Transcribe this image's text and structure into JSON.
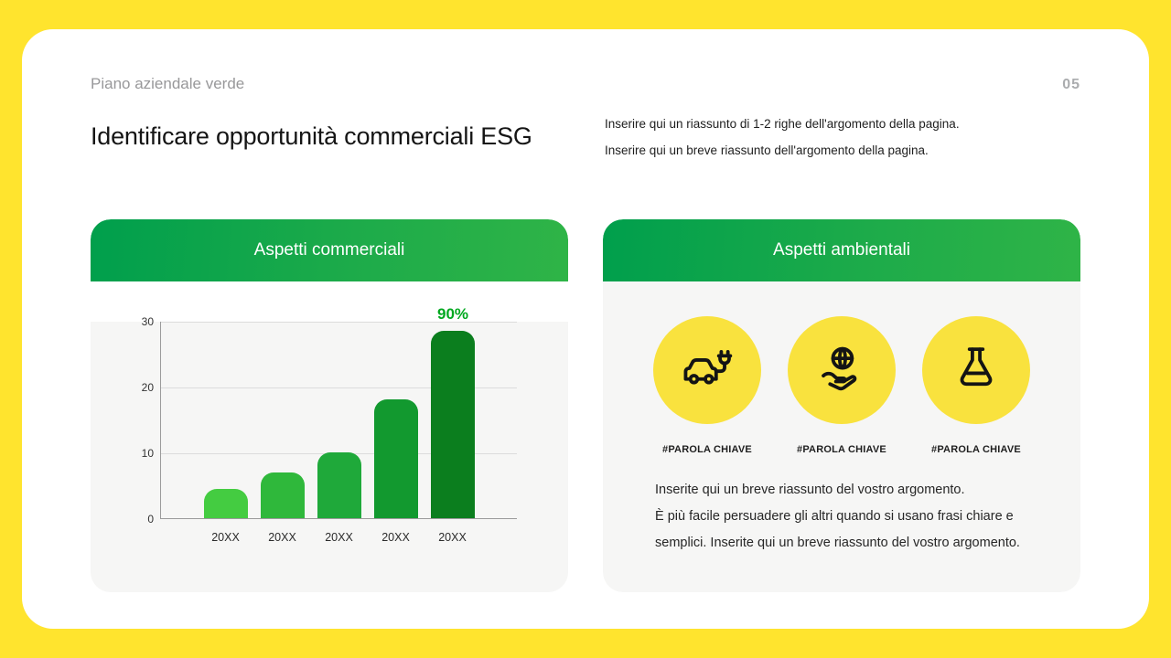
{
  "page": {
    "eyebrow": "Piano aziendale verde",
    "page_number": "05",
    "title": "Identificare opportunità commerciali ESG",
    "summary_line1": "Inserire qui un riassunto di 1-2 righe dell'argomento della pagina.",
    "summary_line2": "Inserire qui un breve riassunto dell'argomento della pagina."
  },
  "left_card": {
    "header": "Aspetti commerciali"
  },
  "chart_data": {
    "type": "bar",
    "categories": [
      "20XX",
      "20XX",
      "20XX",
      "20XX",
      "20XX"
    ],
    "values": [
      4.5,
      7,
      10,
      18,
      28.5
    ],
    "yticks": [
      0,
      10,
      20,
      30
    ],
    "ylim": [
      0,
      30
    ],
    "annotation": {
      "text": "90%",
      "bar_index": 4
    },
    "bar_colors": [
      "#44CC41",
      "#2FB83B",
      "#1FA93A",
      "#12992F",
      "#0B7E1E"
    ],
    "title": "",
    "xlabel": "",
    "ylabel": "",
    "grid": true,
    "legend": false
  },
  "right_card": {
    "header": "Aspetti ambientali",
    "keywords": [
      {
        "icon": "electric-car-icon",
        "label": "#PAROLA CHIAVE"
      },
      {
        "icon": "globe-hand-icon",
        "label": "#PAROLA CHIAVE"
      },
      {
        "icon": "flask-icon",
        "label": "#PAROLA CHIAVE"
      }
    ],
    "body_lines": [
      "Inserite qui un breve riassunto del vostro argomento.",
      "È più facile persuadere gli altri quando si usano frasi chiare e",
      "semplici. Inserite qui un breve riassunto del vostro argomento."
    ]
  },
  "colors": {
    "background_yellow": "#FFE42E",
    "header_green_start": "#009F4C",
    "header_green_end": "#2FB447",
    "accent_green": "#00A81F",
    "circle_yellow": "#F9E23E",
    "card_body_gray": "#F6F6F5"
  }
}
